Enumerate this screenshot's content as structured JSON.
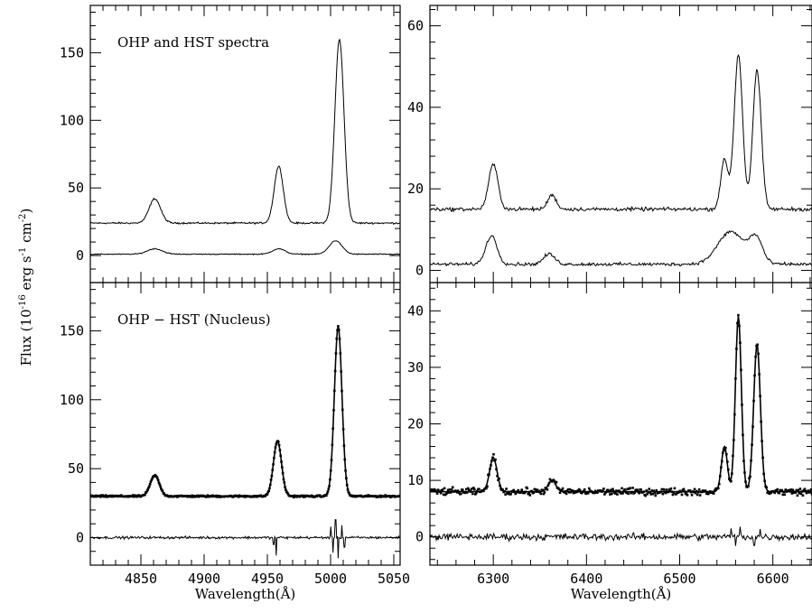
{
  "chart_data": {
    "ylabel": {
      "pre": "Flux (10",
      "exp1": "-16",
      "mid1": " erg s",
      "exp2": "-1",
      "mid2": " cm",
      "exp3": "-2",
      "post": ")"
    },
    "panels": [
      {
        "id": "top-left",
        "type": "line",
        "title": "OHP and HST spectra",
        "xlabel": "",
        "xlim": [
          4810,
          5055
        ],
        "ylim": [
          -20,
          185
        ],
        "xticks": [
          4850,
          4900,
          4950,
          5000,
          5050
        ],
        "yticks": [
          0,
          50,
          100,
          150
        ],
        "xtick_labels_shown": false,
        "series": [
          {
            "style": "line",
            "base": 24,
            "slope": 0.0,
            "noise": 0.6,
            "peaks": [
              {
                "center": 4861,
                "amp": 18,
                "sigma": 4.5
              },
              {
                "center": 4959,
                "amp": 42,
                "sigma": 3.6
              },
              {
                "center": 5007,
                "amp": 136,
                "sigma": 3.6
              }
            ]
          },
          {
            "style": "line",
            "base": 1,
            "slope": 0.0,
            "noise": 0.35,
            "peaks": [
              {
                "center": 4861,
                "amp": 4,
                "sigma": 6
              },
              {
                "center": 4959,
                "amp": 4,
                "sigma": 5
              },
              {
                "center": 5004,
                "amp": 10,
                "sigma": 5
              }
            ]
          }
        ]
      },
      {
        "id": "bottom-left",
        "type": "line",
        "title": "OHP − HST (Nucleus)",
        "xlabel": "Wavelength(Å)",
        "xlim": [
          4810,
          5055
        ],
        "ylim": [
          -20,
          185
        ],
        "xticks": [
          4850,
          4900,
          4950,
          5000,
          5050
        ],
        "yticks": [
          0,
          50,
          100,
          150
        ],
        "xtick_labels_shown": true,
        "series": [
          {
            "style": "line-points",
            "base": 30,
            "slope": 0.0,
            "noise": 0.6,
            "peaks": [
              {
                "center": 4861,
                "amp": 15,
                "sigma": 3.6
              },
              {
                "center": 4958,
                "amp": 40,
                "sigma": 3.2
              },
              {
                "center": 5006,
                "amp": 123,
                "sigma": 3.0
              }
            ]
          },
          {
            "style": "residual",
            "base": 0,
            "slope": 0.0,
            "noise": 0.9,
            "spikes": [
              {
                "x": 4955,
                "value": -5
              },
              {
                "x": 4957,
                "value": -13
              },
              {
                "x": 5000,
                "value": 8
              },
              {
                "x": 5002,
                "value": -11
              },
              {
                "x": 5004,
                "value": 13
              },
              {
                "x": 5006,
                "value": -15
              },
              {
                "x": 5009,
                "value": 9
              },
              {
                "x": 5011,
                "value": -7
              }
            ]
          }
        ]
      },
      {
        "id": "top-right",
        "type": "line",
        "title": "",
        "xlabel": "",
        "xlim": [
          6232,
          6642
        ],
        "ylim": [
          -3,
          65
        ],
        "xticks": [
          6300,
          6400,
          6500,
          6600
        ],
        "yticks": [
          0,
          20,
          40,
          60
        ],
        "xtick_labels_shown": false,
        "series": [
          {
            "style": "line",
            "base": 15,
            "slope": 0.0,
            "noise": 0.45,
            "peaks": [
              {
                "center": 6300,
                "amp": 11,
                "sigma": 5
              },
              {
                "center": 6363,
                "amp": 3.5,
                "sigma": 4.5
              },
              {
                "center": 6548,
                "amp": 12,
                "sigma": 4
              },
              {
                "center": 6563,
                "amp": 38,
                "sigma": 4.5
              },
              {
                "center": 6583,
                "amp": 34,
                "sigma": 4.5
              }
            ]
          },
          {
            "style": "line",
            "base": 1.5,
            "slope": 0.0,
            "noise": 0.4,
            "peaks": [
              {
                "center": 6298,
                "amp": 7,
                "sigma": 6
              },
              {
                "center": 6360,
                "amp": 2.5,
                "sigma": 6
              },
              {
                "center": 6555,
                "amp": 8,
                "sigma": 14
              },
              {
                "center": 6582,
                "amp": 6,
                "sigma": 7
              }
            ]
          }
        ]
      },
      {
        "id": "bottom-right",
        "type": "line",
        "title": "",
        "xlabel": "Wavelength(Å)",
        "xlim": [
          6232,
          6642
        ],
        "ylim": [
          -5,
          45
        ],
        "xticks": [
          6300,
          6400,
          6500,
          6600
        ],
        "yticks": [
          0,
          10,
          20,
          30,
          40
        ],
        "xtick_labels_shown": true,
        "series": [
          {
            "style": "line-points",
            "base": 8,
            "slope": 0.0,
            "noise": 0.6,
            "peaks": [
              {
                "center": 6300,
                "amp": 6,
                "sigma": 4
              },
              {
                "center": 6363,
                "amp": 2,
                "sigma": 4
              },
              {
                "center": 6548,
                "amp": 8,
                "sigma": 3.2
              },
              {
                "center": 6563,
                "amp": 31,
                "sigma": 3.2
              },
              {
                "center": 6583,
                "amp": 26,
                "sigma": 3.6
              }
            ]
          },
          {
            "style": "residual",
            "base": 0,
            "slope": 0.0,
            "noise": 0.6,
            "spikes": [
              {
                "x": 6555,
                "value": 1.5
              },
              {
                "x": 6560,
                "value": -1.6
              },
              {
                "x": 6565,
                "value": 1.8
              },
              {
                "x": 6580,
                "value": -1.5
              },
              {
                "x": 6586,
                "value": 1.4
              }
            ]
          }
        ]
      }
    ]
  }
}
